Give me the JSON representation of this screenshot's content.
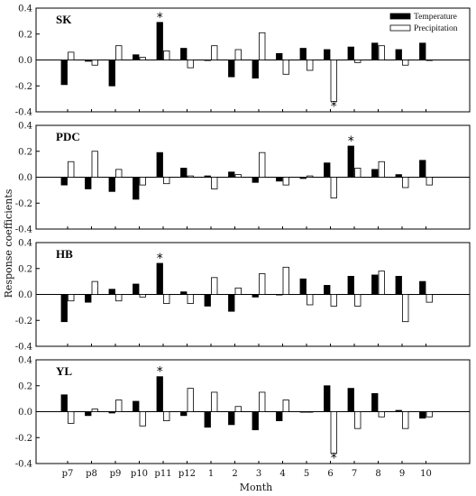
{
  "chart_data": {
    "type": "bar",
    "ylabel": "Response coefficients",
    "xlabel": "Month",
    "categories": [
      "p7",
      "p8",
      "p9",
      "p10",
      "p11",
      "p12",
      "1",
      "2",
      "3",
      "4",
      "5",
      "6",
      "7",
      "8",
      "9",
      "10"
    ],
    "ylim": [
      -0.4,
      0.4
    ],
    "yticks": [
      "0.4",
      "0.2",
      "0.0",
      "-0.2",
      "-0.4"
    ],
    "legend": {
      "position": "top-right",
      "labels": [
        "Temperature",
        "Precipitation"
      ]
    },
    "colors": {
      "temperature": "#000000",
      "precipitation": "#ffffff"
    },
    "significance_marker": "*",
    "panels": [
      {
        "label": "SK",
        "series": [
          {
            "name": "Temperature",
            "values": [
              -0.19,
              -0.01,
              -0.2,
              0.04,
              0.29,
              0.09,
              0.0,
              -0.13,
              -0.14,
              0.05,
              0.09,
              0.08,
              0.1,
              0.13,
              0.08,
              0.13
            ]
          },
          {
            "name": "Precipitation",
            "values": [
              0.06,
              -0.04,
              0.11,
              0.02,
              0.07,
              -0.06,
              0.11,
              0.08,
              0.21,
              -0.11,
              -0.08,
              -0.32,
              -0.02,
              0.11,
              -0.04,
              0.0
            ]
          }
        ],
        "stars": [
          {
            "index": 4,
            "series": "Temperature"
          },
          {
            "index": 11,
            "series": "Precipitation"
          }
        ]
      },
      {
        "label": "PDC",
        "series": [
          {
            "name": "Temperature",
            "values": [
              -0.06,
              -0.09,
              -0.11,
              -0.17,
              0.19,
              0.07,
              0.01,
              0.04,
              -0.04,
              -0.03,
              -0.01,
              0.11,
              0.24,
              0.06,
              0.02,
              0.13
            ]
          },
          {
            "name": "Precipitation",
            "values": [
              0.12,
              0.2,
              0.06,
              -0.06,
              -0.05,
              0.01,
              -0.09,
              0.02,
              0.19,
              -0.06,
              0.01,
              -0.16,
              0.07,
              0.12,
              -0.08,
              -0.06
            ]
          }
        ],
        "stars": [
          {
            "index": 12,
            "series": "Temperature"
          }
        ]
      },
      {
        "label": "HB",
        "series": [
          {
            "name": "Temperature",
            "values": [
              -0.21,
              -0.06,
              0.04,
              0.08,
              0.24,
              0.02,
              -0.09,
              -0.13,
              -0.02,
              0.0,
              0.12,
              0.07,
              0.14,
              0.15,
              0.14,
              0.1
            ]
          },
          {
            "name": "Precipitation",
            "values": [
              -0.05,
              0.1,
              -0.05,
              -0.02,
              -0.07,
              -0.07,
              0.13,
              0.05,
              0.16,
              0.21,
              -0.08,
              -0.09,
              -0.09,
              0.18,
              -0.21,
              -0.06
            ]
          }
        ],
        "stars": [
          {
            "index": 4,
            "series": "Temperature"
          }
        ]
      },
      {
        "label": "YL",
        "series": [
          {
            "name": "Temperature",
            "values": [
              0.13,
              -0.03,
              -0.01,
              0.08,
              0.27,
              -0.03,
              -0.12,
              -0.1,
              -0.14,
              -0.07,
              0.0,
              0.2,
              0.18,
              0.14,
              0.01,
              -0.05
            ]
          },
          {
            "name": "Precipitation",
            "values": [
              -0.09,
              0.02,
              0.09,
              -0.11,
              -0.07,
              0.18,
              0.15,
              0.04,
              0.15,
              0.09,
              0.0,
              -0.32,
              -0.13,
              -0.04,
              -0.13,
              -0.04
            ]
          }
        ],
        "stars": [
          {
            "index": 4,
            "series": "Temperature"
          },
          {
            "index": 11,
            "series": "Precipitation"
          }
        ]
      }
    ]
  }
}
